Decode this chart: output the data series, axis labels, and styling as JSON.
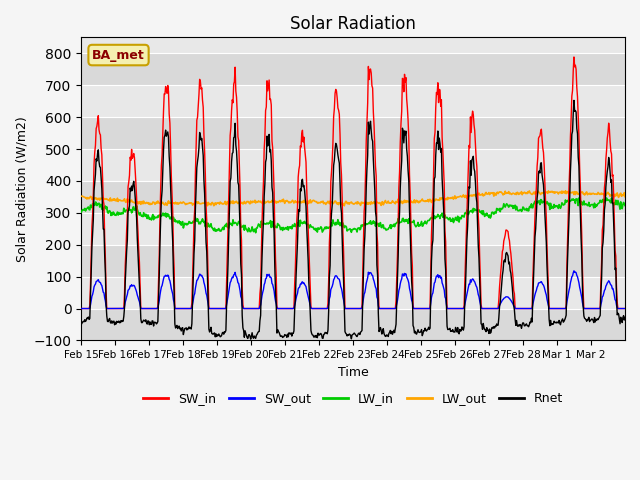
{
  "title": "Solar Radiation",
  "ylabel": "Solar Radiation (W/m2)",
  "xlabel": "Time",
  "ylim": [
    -100,
    850
  ],
  "yticks": [
    -100,
    0,
    100,
    200,
    300,
    400,
    500,
    600,
    700,
    800
  ],
  "annotation": "BA_met",
  "x_tick_labels": [
    "Feb 15",
    "Feb 16",
    "Feb 17",
    "Feb 18",
    "Feb 19",
    "Feb 20",
    "Feb 21",
    "Feb 22",
    "Feb 23",
    "Feb 24",
    "Feb 25",
    "Feb 26",
    "Feb 27",
    "Feb 28",
    "Mar 1",
    "Mar 2"
  ],
  "series_colors": {
    "SW_in": "#ff0000",
    "SW_out": "#0000ff",
    "LW_in": "#00cc00",
    "LW_out": "#ffa500",
    "Rnet": "#000000"
  },
  "sw_in_peaks": [
    600,
    500,
    706,
    705,
    710,
    705,
    540,
    683,
    730,
    730,
    715,
    608,
    240,
    560,
    760,
    550
  ],
  "lw_in_knots_x": [
    0,
    2,
    4,
    6,
    8,
    10,
    12,
    14,
    16
  ],
  "lw_in_knots_y": [
    320,
    295,
    255,
    260,
    255,
    270,
    305,
    330,
    330
  ],
  "lw_out_knots_x": [
    0,
    2,
    4,
    6,
    8,
    10,
    12,
    14,
    16
  ],
  "lw_out_knots_y": [
    350,
    330,
    330,
    335,
    330,
    335,
    360,
    365,
    355
  ],
  "n_days": 16,
  "dt_hours": 0.5,
  "fig_bg": "#f5f5f5",
  "ax_bg": "#e8e8e8",
  "band_color": "#d0d0d0"
}
